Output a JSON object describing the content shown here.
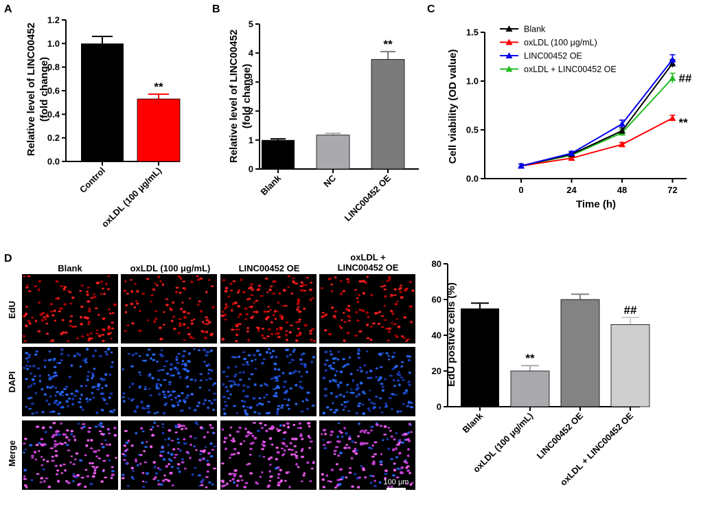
{
  "panels": {
    "A": "A",
    "B": "B",
    "C": "C",
    "D": "D"
  },
  "colors": {
    "black": "#000000",
    "red": "#ff0000",
    "blue": "#0000ee",
    "green": "#22bb22",
    "light_gray": "#a9a9ae",
    "mid_gray": "#838383",
    "dark_gray": "#7b7b7b",
    "pale_gray": "#cfcfcf"
  },
  "chart_data": [
    {
      "id": "A",
      "type": "bar",
      "ylabel": "Relative level of LINC00452",
      "ylabel2": "(fold change)",
      "ylim": [
        0,
        1.2
      ],
      "yticks": [
        "0.0",
        "0.2",
        "0.4",
        "0.6",
        "0.8",
        "1.0",
        "1.2"
      ],
      "categories": [
        "Control",
        "oxLDL (100 μg/mL)"
      ],
      "values": [
        1.0,
        0.53
      ],
      "errors": [
        0.06,
        0.04
      ],
      "bar_colors": [
        "#000000",
        "#ff0000"
      ],
      "annotations": [
        "",
        "**"
      ]
    },
    {
      "id": "B",
      "type": "bar",
      "ylabel": "Relative level of LINC00452",
      "ylabel2": "(fold change)",
      "ylim": [
        0,
        5
      ],
      "yticks": [
        "0",
        "1",
        "2",
        "3",
        "4",
        "5"
      ],
      "categories": [
        "Blank",
        "NC",
        "LINC00452 OE"
      ],
      "values": [
        1.0,
        1.17,
        3.78
      ],
      "errors": [
        0.04,
        0.06,
        0.27
      ],
      "bar_colors": [
        "#000000",
        "#a9a9ae",
        "#7b7b7b"
      ],
      "annotations": [
        "",
        "",
        "**"
      ]
    },
    {
      "id": "C",
      "type": "line",
      "ylabel": "Cell viability (OD value)",
      "xlabel": "Time (h)",
      "ylim": [
        0,
        1.5
      ],
      "yticks": [
        "0.0",
        "0.5",
        "1.0",
        "1.5"
      ],
      "x": [
        0,
        24,
        48,
        72
      ],
      "xticks": [
        "0",
        "24",
        "48",
        "72"
      ],
      "series": [
        {
          "name": "Blank",
          "color": "#000000",
          "values": [
            0.13,
            0.25,
            0.49,
            1.18
          ],
          "errors": [
            0.02,
            0.02,
            0.03,
            0.04
          ]
        },
        {
          "name": "oxLDL (100 μg/mL)",
          "color": "#ff0000",
          "values": [
            0.13,
            0.21,
            0.35,
            0.62
          ],
          "errors": [
            0.02,
            0.02,
            0.02,
            0.03
          ]
        },
        {
          "name": "LINC00452 OE",
          "color": "#0000ee",
          "values": [
            0.13,
            0.26,
            0.56,
            1.22
          ],
          "errors": [
            0.02,
            0.02,
            0.04,
            0.05
          ]
        },
        {
          "name": "oxLDL + LINC00452 OE",
          "color": "#22bb22",
          "values": [
            0.13,
            0.24,
            0.47,
            1.03
          ],
          "errors": [
            0.02,
            0.02,
            0.03,
            0.05
          ]
        }
      ],
      "annotations": [
        {
          "label": "##",
          "series": 3
        },
        {
          "label": "**",
          "series": 1
        }
      ]
    },
    {
      "id": "D",
      "type": "bar",
      "ylabel": "EdU postive cells (%)",
      "ylim": [
        0,
        80
      ],
      "yticks": [
        "0",
        "20",
        "40",
        "60",
        "80"
      ],
      "categories": [
        "Blank",
        "oxLDL (100 μg/mL)",
        "LINC00452 OE",
        "oxLDL + LINC00452 OE"
      ],
      "values": [
        55,
        20,
        60,
        46
      ],
      "errors": [
        3,
        3,
        3,
        4
      ],
      "bar_colors": [
        "#000000",
        "#a9a9ae",
        "#838383",
        "#cfcfcf"
      ],
      "annotations": [
        "",
        "**",
        "",
        "##"
      ]
    }
  ],
  "micrographs": {
    "column_headers": [
      "Blank",
      "oxLDL (100 μg/mL)",
      "LINC00452 OE",
      "oxLDL + LINC00452 OE"
    ],
    "row_labels": [
      "EdU",
      "DAPI",
      "Merge"
    ],
    "scale_bar": "100 μm"
  }
}
